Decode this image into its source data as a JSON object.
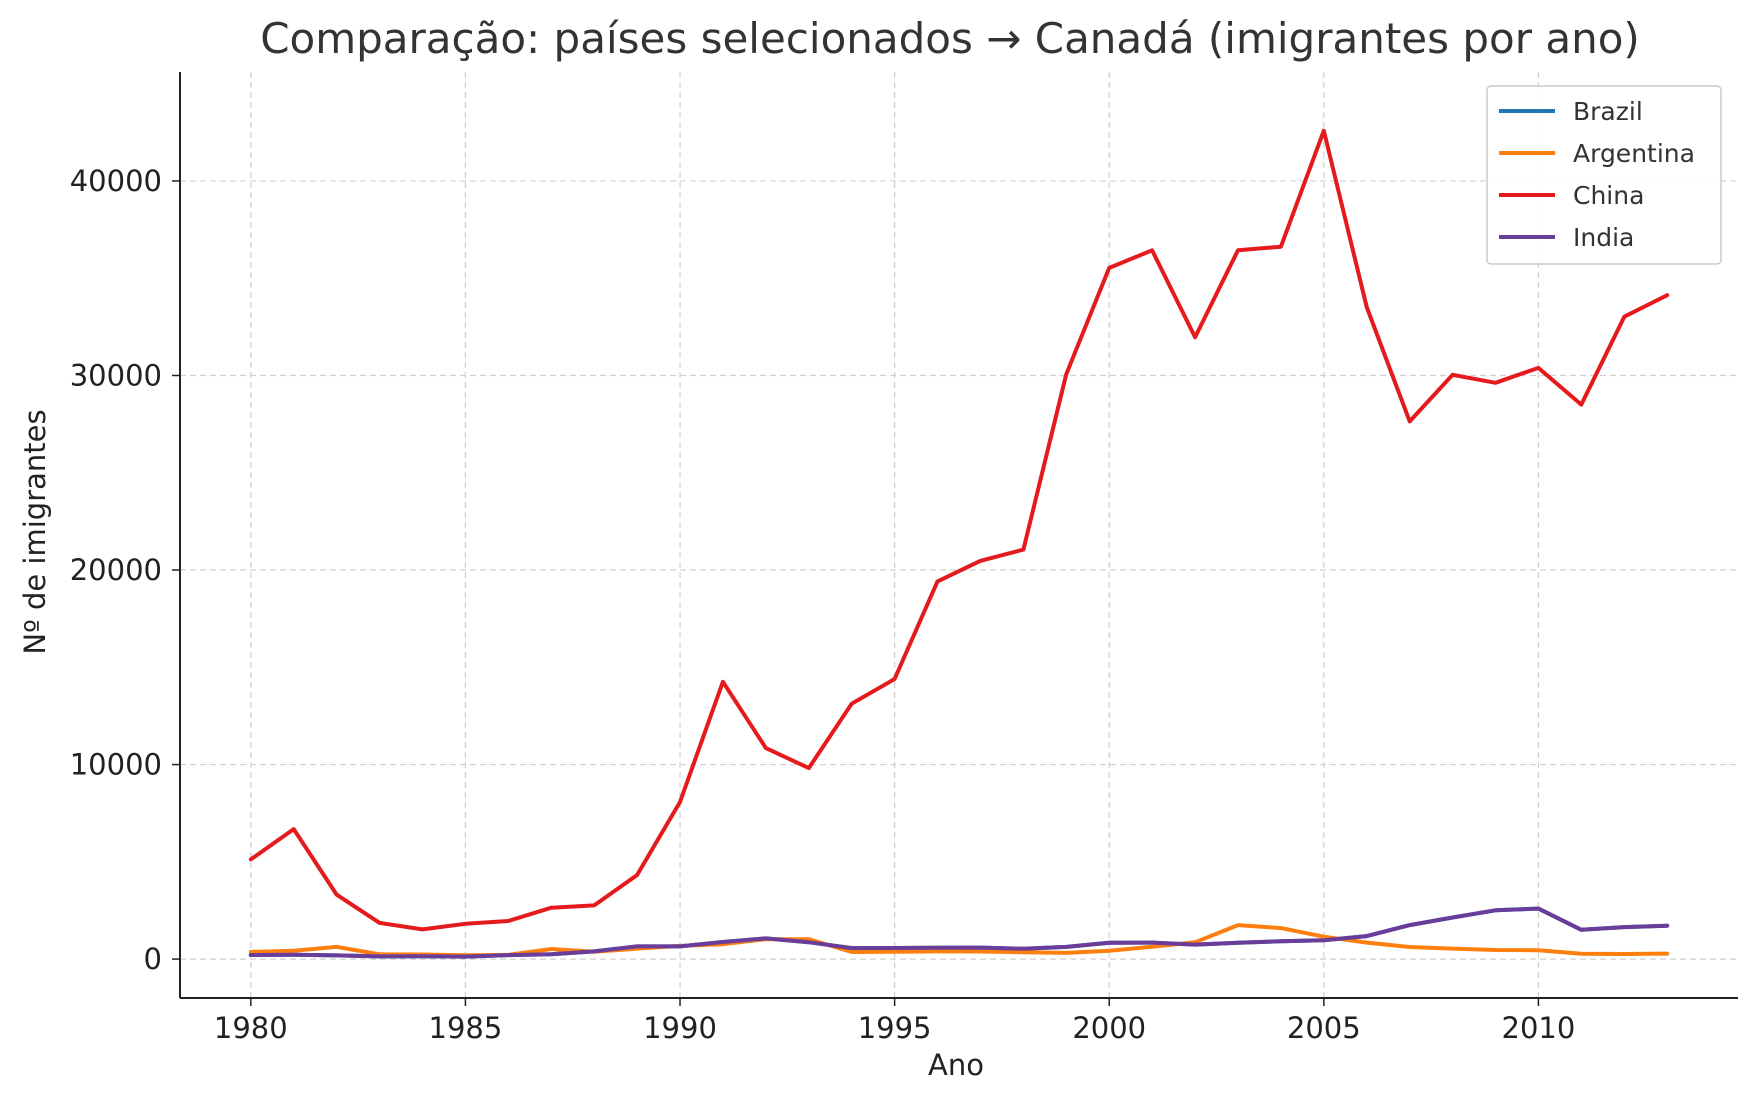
{
  "chart_data": {
    "type": "line",
    "title": "Comparação: países selecionados → Canadá (imigrantes por ano)",
    "xlabel": "Ano",
    "ylabel": "Nº de imigrantes",
    "xlim": [
      1978.35,
      1914.65
    ],
    "ylim": [
      -2000,
      45600
    ],
    "x_ticks": [
      1980,
      1985,
      1990,
      1995,
      2000,
      2005,
      2010
    ],
    "y_ticks": [
      0,
      10000,
      20000,
      30000,
      40000
    ],
    "grid": true,
    "legend_position": "top-right",
    "x": [
      1980,
      1981,
      1982,
      1983,
      1984,
      1985,
      1986,
      1987,
      1988,
      1989,
      1990,
      1991,
      1992,
      1993,
      1994,
      1995,
      1996,
      1997,
      1998,
      1999,
      2000,
      2001,
      2002,
      2003,
      2004,
      2005,
      2006,
      2007,
      2008,
      2009,
      2010,
      2011,
      2012,
      2013
    ],
    "series": [
      {
        "name": "Brazil",
        "color": "#1f77b4",
        "values": [
          211,
          220,
          192,
          139,
          145,
          130,
          205,
          244,
          394,
          650,
          650,
          877,
          1066,
          866,
          566,
          572,
          586,
          591,
          531,
          626,
          845,
          847,
          745,
          839,
          917,
          969,
          1181,
          1746,
          2138,
          2509,
          2598,
          1508,
          1642,
          1714
        ]
      },
      {
        "name": "Argentina",
        "color": "#ff7f0e",
        "values": [
          368,
          426,
          626,
          241,
          237,
          196,
          213,
          519,
          374,
          538,
          678,
          763,
          1023,
          1022,
          366,
          380,
          396,
          391,
          349,
          318,
          427,
          635,
          865,
          1745,
          1591,
          1153,
          847,
          620,
          540,
          467,
          459,
          278,
          263,
          282
        ]
      },
      {
        "name": "China",
        "color": "#e41a1c",
        "values": [
          5123,
          6682,
          3308,
          1863,
          1527,
          1816,
          1960,
          2643,
          2758,
          4323,
          8076,
          14255,
          10846,
          9817,
          13128,
          14398,
          19415,
          20475,
          21049,
          30069,
          35529,
          36434,
          31961,
          36439,
          36619,
          42584,
          33518,
          27642,
          30037,
          29622,
          30391,
          28502,
          33024,
          34129
        ]
      },
      {
        "name": "India",
        "color": "#6a3d9a",
        "values": [
          211,
          220,
          192,
          139,
          145,
          130,
          205,
          244,
          394,
          650,
          650,
          877,
          1066,
          866,
          566,
          572,
          586,
          591,
          531,
          626,
          845,
          847,
          745,
          839,
          917,
          969,
          1181,
          1746,
          2138,
          2509,
          2598,
          1508,
          1642,
          1714
        ]
      }
    ]
  }
}
